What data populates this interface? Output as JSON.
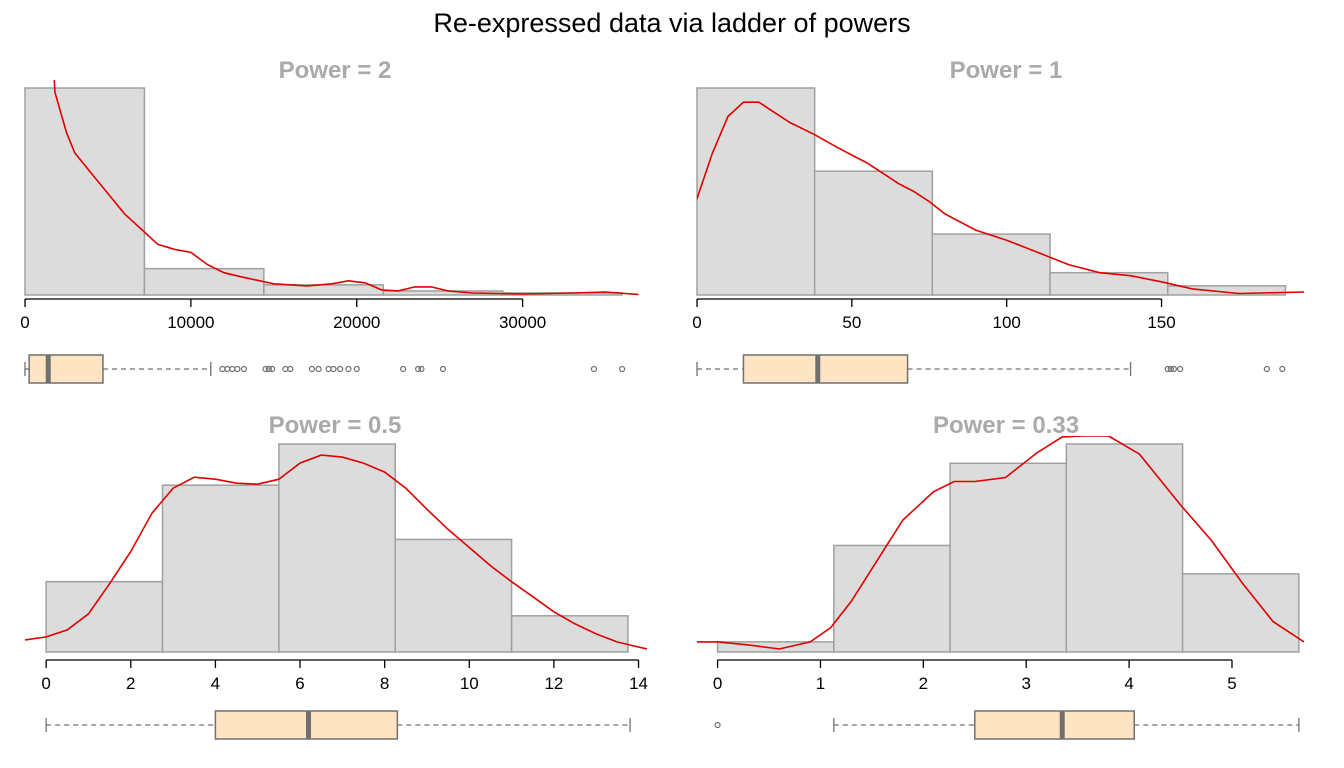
{
  "title": "Re-expressed data via ladder of powers",
  "colors": {
    "hist_fill": "#dcdcdc",
    "hist_stroke": "#a0a0a0",
    "density": "#e00000",
    "box_fill": "#ffe4c4",
    "box_stroke": "#707070",
    "median": "#707070"
  },
  "chart_data": [
    {
      "type": "histogram",
      "title": "Power =  2",
      "bins": [
        [
          0,
          7200,
          204
        ],
        [
          7200,
          14400,
          26
        ],
        [
          14400,
          21600,
          10
        ],
        [
          21600,
          28800,
          4
        ],
        [
          28800,
          36000,
          2
        ]
      ],
      "xlim": [
        0,
        37500
      ],
      "ylim_max": 204,
      "xticks": [
        0,
        10000,
        20000,
        30000
      ],
      "density": [
        [
          -1000,
          60
        ],
        [
          -500,
          150
        ],
        [
          -200,
          300
        ],
        [
          1500,
          300
        ],
        [
          1800,
          200
        ],
        [
          2500,
          160
        ],
        [
          3000,
          140
        ],
        [
          4000,
          120
        ],
        [
          5000,
          100
        ],
        [
          6000,
          80
        ],
        [
          7000,
          65
        ],
        [
          8000,
          50
        ],
        [
          9000,
          45
        ],
        [
          10000,
          42
        ],
        [
          11000,
          30
        ],
        [
          12000,
          22
        ],
        [
          13000,
          18
        ],
        [
          15000,
          11
        ],
        [
          17000,
          9
        ],
        [
          18500,
          11
        ],
        [
          19500,
          14
        ],
        [
          20500,
          12
        ],
        [
          21500,
          5
        ],
        [
          22500,
          4
        ],
        [
          23500,
          8
        ],
        [
          24500,
          8
        ],
        [
          25500,
          4
        ],
        [
          27000,
          2
        ],
        [
          30000,
          1
        ],
        [
          33000,
          2
        ],
        [
          35000,
          3
        ],
        [
          37000,
          0.5
        ]
      ],
      "box": {
        "min": 0,
        "q1": 250,
        "median": 1400,
        "q3": 4700,
        "whisker_high": 11200,
        "outliers": [
          11900,
          12200,
          12500,
          12800,
          13200,
          14500,
          14700,
          14900,
          15700,
          16000,
          17300,
          17700,
          18300,
          18600,
          19000,
          19500,
          20000,
          22800,
          23700,
          23900,
          25200,
          34300,
          36000
        ]
      }
    },
    {
      "type": "histogram",
      "title": "Power =  1",
      "bins": [
        [
          0,
          38,
          204
        ],
        [
          38,
          76,
          122
        ],
        [
          76,
          114,
          60
        ],
        [
          114,
          152,
          22
        ],
        [
          152,
          190,
          9
        ]
      ],
      "xlim": [
        0,
        196
      ],
      "ylim_max": 204,
      "xticks": [
        0,
        50,
        100,
        150
      ],
      "density": [
        [
          -8,
          60
        ],
        [
          0,
          95
        ],
        [
          5,
          140
        ],
        [
          10,
          176
        ],
        [
          15,
          190
        ],
        [
          20,
          190
        ],
        [
          25,
          180
        ],
        [
          30,
          170
        ],
        [
          38,
          158
        ],
        [
          45,
          146
        ],
        [
          50,
          138
        ],
        [
          55,
          130
        ],
        [
          60,
          120
        ],
        [
          65,
          110
        ],
        [
          70,
          102
        ],
        [
          75,
          92
        ],
        [
          80,
          80
        ],
        [
          90,
          64
        ],
        [
          100,
          54
        ],
        [
          110,
          42
        ],
        [
          120,
          30
        ],
        [
          130,
          22
        ],
        [
          140,
          19
        ],
        [
          150,
          13
        ],
        [
          160,
          6
        ],
        [
          175,
          1.5
        ],
        [
          196,
          3
        ]
      ],
      "box": {
        "min": 0,
        "q1": 15,
        "median": 39,
        "q3": 68,
        "whisker_high": 140,
        "outliers": [
          152,
          153,
          154,
          156,
          184,
          189
        ]
      }
    },
    {
      "type": "histogram",
      "title": "Power =  0.5",
      "bins": [
        [
          0,
          2.75,
          70
        ],
        [
          2.75,
          5.5,
          166
        ],
        [
          5.5,
          8.25,
          207
        ],
        [
          8.25,
          11,
          112
        ],
        [
          11,
          13.75,
          36
        ]
      ],
      "xlim": [
        -0.5,
        14.2
      ],
      "ylim_max": 207,
      "xticks": [
        0,
        2,
        4,
        6,
        8,
        10,
        12,
        14
      ],
      "density": [
        [
          -0.5,
          12
        ],
        [
          0,
          15
        ],
        [
          0.5,
          22
        ],
        [
          1,
          38
        ],
        [
          1.5,
          68
        ],
        [
          2,
          100
        ],
        [
          2.5,
          138
        ],
        [
          3,
          163
        ],
        [
          3.5,
          174
        ],
        [
          4,
          172
        ],
        [
          4.5,
          168
        ],
        [
          5,
          167
        ],
        [
          5.5,
          172
        ],
        [
          6,
          188
        ],
        [
          6.5,
          196
        ],
        [
          7,
          194
        ],
        [
          7.5,
          188
        ],
        [
          8,
          179
        ],
        [
          8.5,
          163
        ],
        [
          9,
          142
        ],
        [
          9.5,
          122
        ],
        [
          10,
          104
        ],
        [
          10.5,
          86
        ],
        [
          11,
          70
        ],
        [
          11.5,
          55
        ],
        [
          12,
          40
        ],
        [
          12.5,
          28
        ],
        [
          13,
          18
        ],
        [
          13.5,
          10
        ],
        [
          14.2,
          3
        ]
      ],
      "box": {
        "min": 0,
        "q1": 4,
        "median": 6.2,
        "q3": 8.3,
        "whisker_high": 13.8,
        "outliers": []
      }
    },
    {
      "type": "histogram",
      "title": "Power =  0.33",
      "bins": [
        [
          0,
          1.13,
          10
        ],
        [
          1.13,
          2.26,
          105
        ],
        [
          2.26,
          3.39,
          186
        ],
        [
          3.39,
          4.52,
          205
        ],
        [
          4.52,
          5.65,
          77
        ]
      ],
      "xlim": [
        -0.2,
        5.7
      ],
      "ylim_max": 205,
      "xticks": [
        0,
        1,
        2,
        3,
        4,
        5
      ],
      "density": [
        [
          -0.2,
          10
        ],
        [
          0,
          10
        ],
        [
          0.3,
          7
        ],
        [
          0.6,
          3
        ],
        [
          0.9,
          10
        ],
        [
          1.1,
          24
        ],
        [
          1.3,
          50
        ],
        [
          1.5,
          82
        ],
        [
          1.8,
          130
        ],
        [
          2.1,
          158
        ],
        [
          2.3,
          168
        ],
        [
          2.5,
          168
        ],
        [
          2.8,
          172
        ],
        [
          3.1,
          196
        ],
        [
          3.35,
          212
        ],
        [
          3.55,
          213
        ],
        [
          3.8,
          213
        ],
        [
          4.1,
          195
        ],
        [
          4.5,
          145
        ],
        [
          4.8,
          110
        ],
        [
          5.1,
          68
        ],
        [
          5.4,
          30
        ],
        [
          5.7,
          10
        ]
      ],
      "box": {
        "min": 1.13,
        "q1": 2.5,
        "median": 3.35,
        "q3": 4.05,
        "whisker_high": 5.65,
        "outliers": [
          0
        ]
      }
    }
  ]
}
